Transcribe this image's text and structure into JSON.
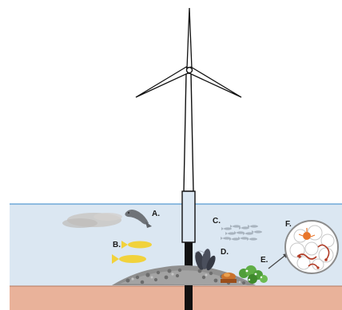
{
  "labels": {
    "a": "A.",
    "b": "B.",
    "c": "C.",
    "d": "D.",
    "e": "E.",
    "f": "F."
  },
  "colors": {
    "sky": "#ffffff",
    "water": "#dbe7f2",
    "water_line": "#6ea8d8",
    "seabed": "#e9b29a",
    "turbine": "#111111",
    "fish_yellow": "#f1d23c",
    "fish_grey": "#a9b4bf",
    "seal": "#6f7378",
    "plume": "#c9c7c4",
    "rock": "#8f8f8f",
    "algae": "#4f9e3a",
    "magnifier_ring": "#b13a24"
  }
}
